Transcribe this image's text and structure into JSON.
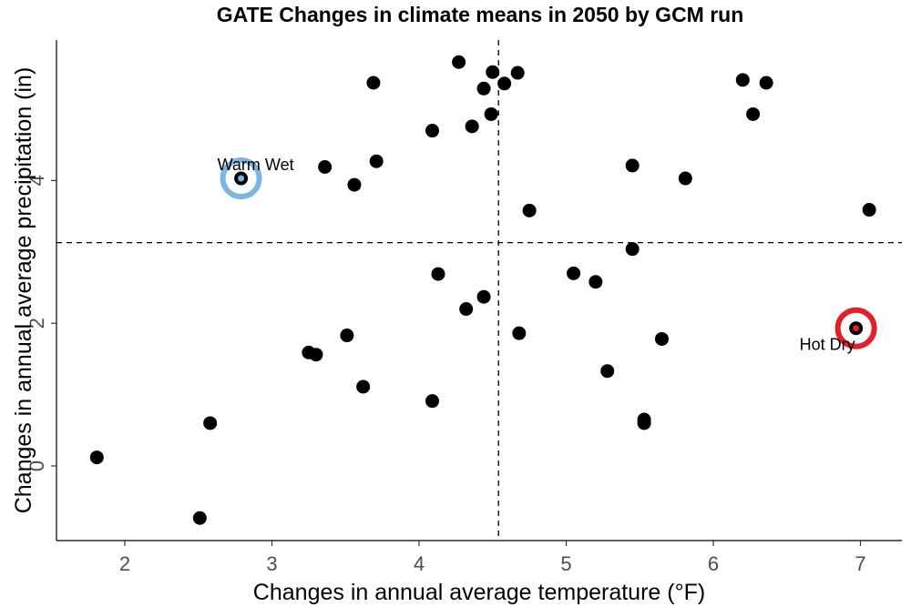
{
  "chart_data": {
    "type": "scatter",
    "title": "GATE Changes in climate means in 2050 by GCM run",
    "xlabel": "Changes in annual average temperature (°F)",
    "ylabel": "Changes in annual average precipitation (in)",
    "xlim": [
      1.55,
      7.3
    ],
    "ylim": [
      -1.05,
      6.0
    ],
    "xticks": [
      2,
      3,
      4,
      5,
      6,
      7
    ],
    "yticks": [
      0,
      2,
      4
    ],
    "grid": false,
    "reference_lines": {
      "x": 4.54,
      "y": 3.13
    },
    "points": [
      {
        "x": 1.81,
        "y": 0.12
      },
      {
        "x": 2.51,
        "y": -0.73
      },
      {
        "x": 2.58,
        "y": 0.6
      },
      {
        "x": 2.79,
        "y": 4.03
      },
      {
        "x": 3.25,
        "y": 1.59
      },
      {
        "x": 3.3,
        "y": 1.56
      },
      {
        "x": 3.36,
        "y": 4.19
      },
      {
        "x": 3.51,
        "y": 1.83
      },
      {
        "x": 3.56,
        "y": 3.94
      },
      {
        "x": 3.62,
        "y": 1.11
      },
      {
        "x": 3.69,
        "y": 5.37
      },
      {
        "x": 3.71,
        "y": 4.27
      },
      {
        "x": 4.09,
        "y": 4.7
      },
      {
        "x": 4.09,
        "y": 0.91
      },
      {
        "x": 4.13,
        "y": 2.69
      },
      {
        "x": 4.27,
        "y": 5.66
      },
      {
        "x": 4.32,
        "y": 2.2
      },
      {
        "x": 4.36,
        "y": 4.76
      },
      {
        "x": 4.44,
        "y": 5.29
      },
      {
        "x": 4.44,
        "y": 2.37
      },
      {
        "x": 4.49,
        "y": 4.93
      },
      {
        "x": 4.5,
        "y": 5.52
      },
      {
        "x": 4.58,
        "y": 5.36
      },
      {
        "x": 4.67,
        "y": 5.51
      },
      {
        "x": 4.68,
        "y": 1.86
      },
      {
        "x": 4.75,
        "y": 3.58
      },
      {
        "x": 5.05,
        "y": 2.7
      },
      {
        "x": 5.2,
        "y": 2.58
      },
      {
        "x": 5.28,
        "y": 1.33
      },
      {
        "x": 5.45,
        "y": 4.21
      },
      {
        "x": 5.45,
        "y": 3.04
      },
      {
        "x": 5.53,
        "y": 0.65
      },
      {
        "x": 5.53,
        "y": 0.6
      },
      {
        "x": 5.65,
        "y": 1.78
      },
      {
        "x": 5.81,
        "y": 4.03
      },
      {
        "x": 6.2,
        "y": 5.41
      },
      {
        "x": 6.27,
        "y": 4.93
      },
      {
        "x": 6.36,
        "y": 5.37
      },
      {
        "x": 6.97,
        "y": 1.93
      },
      {
        "x": 7.06,
        "y": 3.59
      }
    ],
    "highlights": [
      {
        "label": "Warm Wet",
        "x": 2.79,
        "y": 4.03,
        "color": "#7ab6e3",
        "label_position": "above-left"
      },
      {
        "label": "Hot Dry",
        "x": 6.97,
        "y": 1.93,
        "color": "#e0202a",
        "label_position": "below-left"
      }
    ],
    "point_color": "#000000"
  }
}
